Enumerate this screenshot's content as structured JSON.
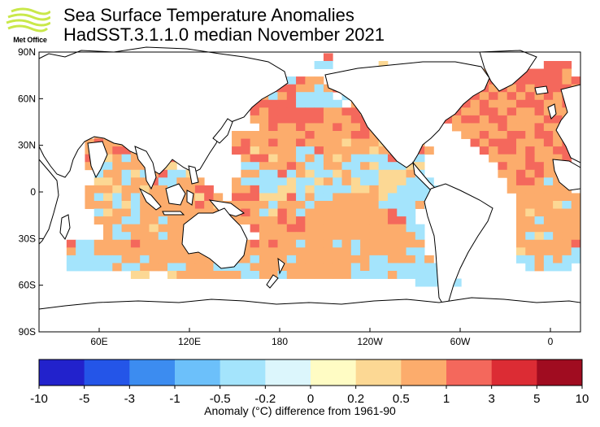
{
  "logo": {
    "text": "Met Office",
    "color": "#c9e84a"
  },
  "title": "Sea Surface Temperature Anomalies",
  "subtitle": "HadSST.3.1.1.0 median November 2021",
  "map": {
    "lat_ticks": [
      "90N",
      "60N",
      "30N",
      "0",
      "30S",
      "60S",
      "90S"
    ],
    "lon_ticks": [
      "60E",
      "120E",
      "180",
      "120W",
      "60W",
      "0"
    ],
    "grid_rows": [
      "_______________________________H___________________________",
      "___HHH__b_____________________bb_____m____________HHH__HHH_",
      "__hhhHbbh___________________________H_H_________hhhHHHHHHh_",
      "_hHhhHHHb____________hhh__HbHhh____bb________HHhhHhHHHHHHhH",
      "_HHhhHHHh____________hHHhHHHhhbhHHhhb_______bHHHHhHhHhHHHHh",
      "_Hhh__________________HHhbhHbbbb_bbHHhH______HHHhHhHhHhHhHh",
      "_HHH__________________hHHHHHbbbbb_hhHHhH_____hHhHhhhHHHhhHh",
      "__HHhh_________________HhHHHHHHhhHHhHhhh____hHhhHHhHhhHhhhH",
      "__HHhh_________________hhHHHHHHhhhHHhhhHH___HhHHhHHhhhhHHhH",
      "__hHHh__________________hHhhHhhhHhhHhHhHHh___hhhhhHhhhHhhhH",
      "______hhHhh__________hhhhhhhhHhhhhHHhhhhhh____hhHhhHHhHHhH_",
      "_____hHhhhHH_________hHhhHhhHhhhhmhhhmhhmh_____HhHHHhhhHhH_",
      "_____hbhHHhhhH_______HHmhhhhbbHhhhhhmhhhhHh_____HhHHhHhhHH_",
      "_____HhmhbhhhhH_______hHHmhhbhbhmhbbbbHhbb_______hhhhHhhhH_",
      "_____hbbhhhhmmm_______bbhhhHhbbhhbbhmbbbmm________HhhHHhhh_",
      "______bhhbmbhHbbm_____hhbbHbhmbbmhbbbmmmhb________hhHhHhhh_",
      "______mmhbhhHbbhhh___hbbbbbmbbmhbhmbbmmmbbb________hHHhbhh_",
      "_____hhhmhhmhhbhhHH__hhHbbmmbmbbbbmmhmmbbbbb_______hhhhhhh_",
      "_____hbmbhbhhhhhhmHh_HHHmmmHbhbbhhhhhmbbbbbb________hhhhhhh",
      "_____hhhbmbhhhhhhHhmhhhhhbhhhbhhhhhhhbbbbhb_________hhhhmbh",
      "______bmhhbhhhhhhhhhhhHhbmHhbhhhhhhhhhHbb___________hmhhhhh",
      "______hhhbbhhbhhhhhhhhhhhhHhHhhhhhhhhhHHb___________hhbhhhh",
      "_______hbhhhmhhhhh_____HhhhHHhhhhhhhhhhhbb__________hhhhhhh",
      "_______hbbhhhbhhhhh_____hhhhhhhhhhhhhhhhhb__________hbmbhhh",
      "___HbbhhhhHhhhhhhhh__hhHhHhhbhhhbhbhhhhhhh__________hhhhhhH",
      "___hbbhhhhhhhhhhhhhhhHhhhhhhhhhhhhbhhhhhbb__________mhhhhhb",
      "___bbbbbbhhbhhhhhhhhhhhbhhhbhhhhhhhhbbhhhbh_________bbhbhbb",
      "___bbbbbhbbhhhbbhhhbbbbhhhhhhhhhhhbhbbbbbbbb_________bhbbb_",
      "__________mm__mhhhhhhhbbhhbhhhhhhhbbbbhbbbbbb_______________",
      "_________________________________________bbbbb_____________"
    ],
    "land": {
      "fill": "#ffffff",
      "stroke": "#000000"
    }
  },
  "colorbar": {
    "colors": [
      "#2222cc",
      "#2455e8",
      "#3c8cf0",
      "#6cc0fa",
      "#a4e4fc",
      "#dcf6fc",
      "#fffcc4",
      "#fcd894",
      "#fcac6c",
      "#f4685c",
      "#dc2c34",
      "#a00c20"
    ],
    "tick_labels": [
      "-10",
      "-5",
      "-3",
      "-1",
      "-0.5",
      "-0.2",
      "0",
      "0.2",
      "0.5",
      "1",
      "3",
      "5",
      "10"
    ],
    "caption": "Anomaly (°C) difference from 1961-90"
  }
}
